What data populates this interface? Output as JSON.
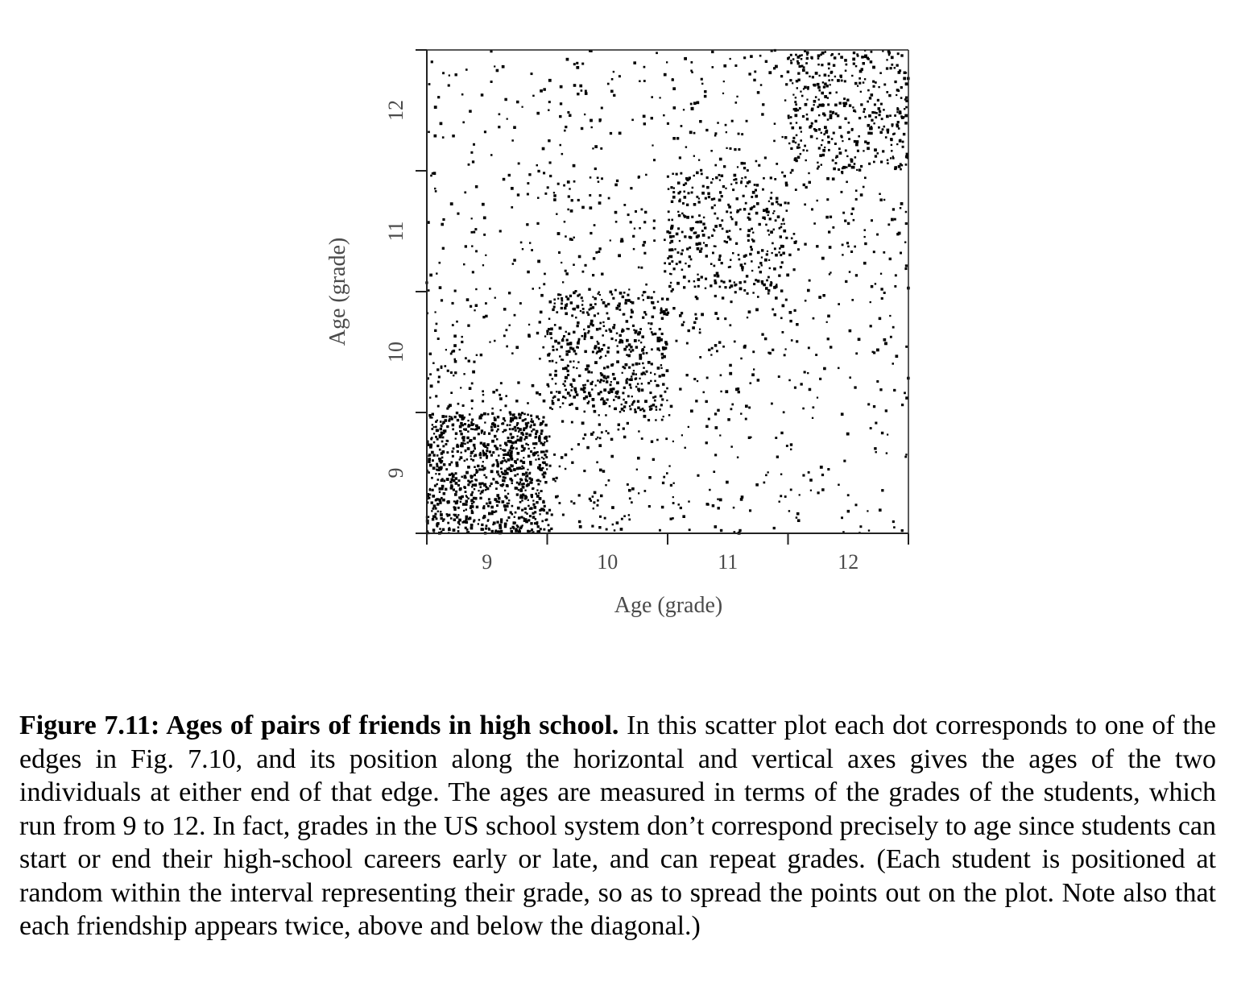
{
  "chart_data": {
    "type": "scatter",
    "title": "",
    "xlabel": "Age (grade)",
    "ylabel": "Age (grade)",
    "xlim": [
      8.5,
      12.5
    ],
    "ylim": [
      8.5,
      12.5
    ],
    "x_ticks": [
      "9",
      "10",
      "11",
      "12"
    ],
    "y_ticks": [
      "9",
      "10",
      "11",
      "12"
    ],
    "grid": false,
    "marker_color": "#000000",
    "density_blocks": [
      {
        "grade_x": 9,
        "grade_y": 9,
        "relative_density": 1.0
      },
      {
        "grade_x": 10,
        "grade_y": 10,
        "relative_density": 0.55
      },
      {
        "grade_x": 11,
        "grade_y": 11,
        "relative_density": 0.4
      },
      {
        "grade_x": 12,
        "grade_y": 12,
        "relative_density": 0.45
      },
      {
        "grade_x": 9,
        "grade_y": 10,
        "relative_density": 0.12
      },
      {
        "grade_x": 10,
        "grade_y": 11,
        "relative_density": 0.1
      },
      {
        "grade_x": 11,
        "grade_y": 12,
        "relative_density": 0.1
      },
      {
        "grade_x": 9,
        "grade_y": 11,
        "relative_density": 0.07
      },
      {
        "grade_x": 10,
        "grade_y": 12,
        "relative_density": 0.07
      },
      {
        "grade_x": 9,
        "grade_y": 12,
        "relative_density": 0.05
      }
    ]
  },
  "caption": {
    "label": "Figure 7.11: Ages of pairs of friends in high school.",
    "text": " In this scatter plot each dot corresponds to one of the edges in Fig. 7.10, and its position along the horizontal and vertical axes gives the ages of the two individuals at either end of that edge. The ages are measured in terms of the grades of the students, which run from 9 to 12. In fact, grades in the US school system don’t correspond precisely to age since students can start or end their high-school careers early or late, and can repeat grades. (Each student is positioned at random within the interval representing their grade, so as to spread the points out on the plot. Note also that each friendship appears twice, above and below the diagonal.)"
  }
}
